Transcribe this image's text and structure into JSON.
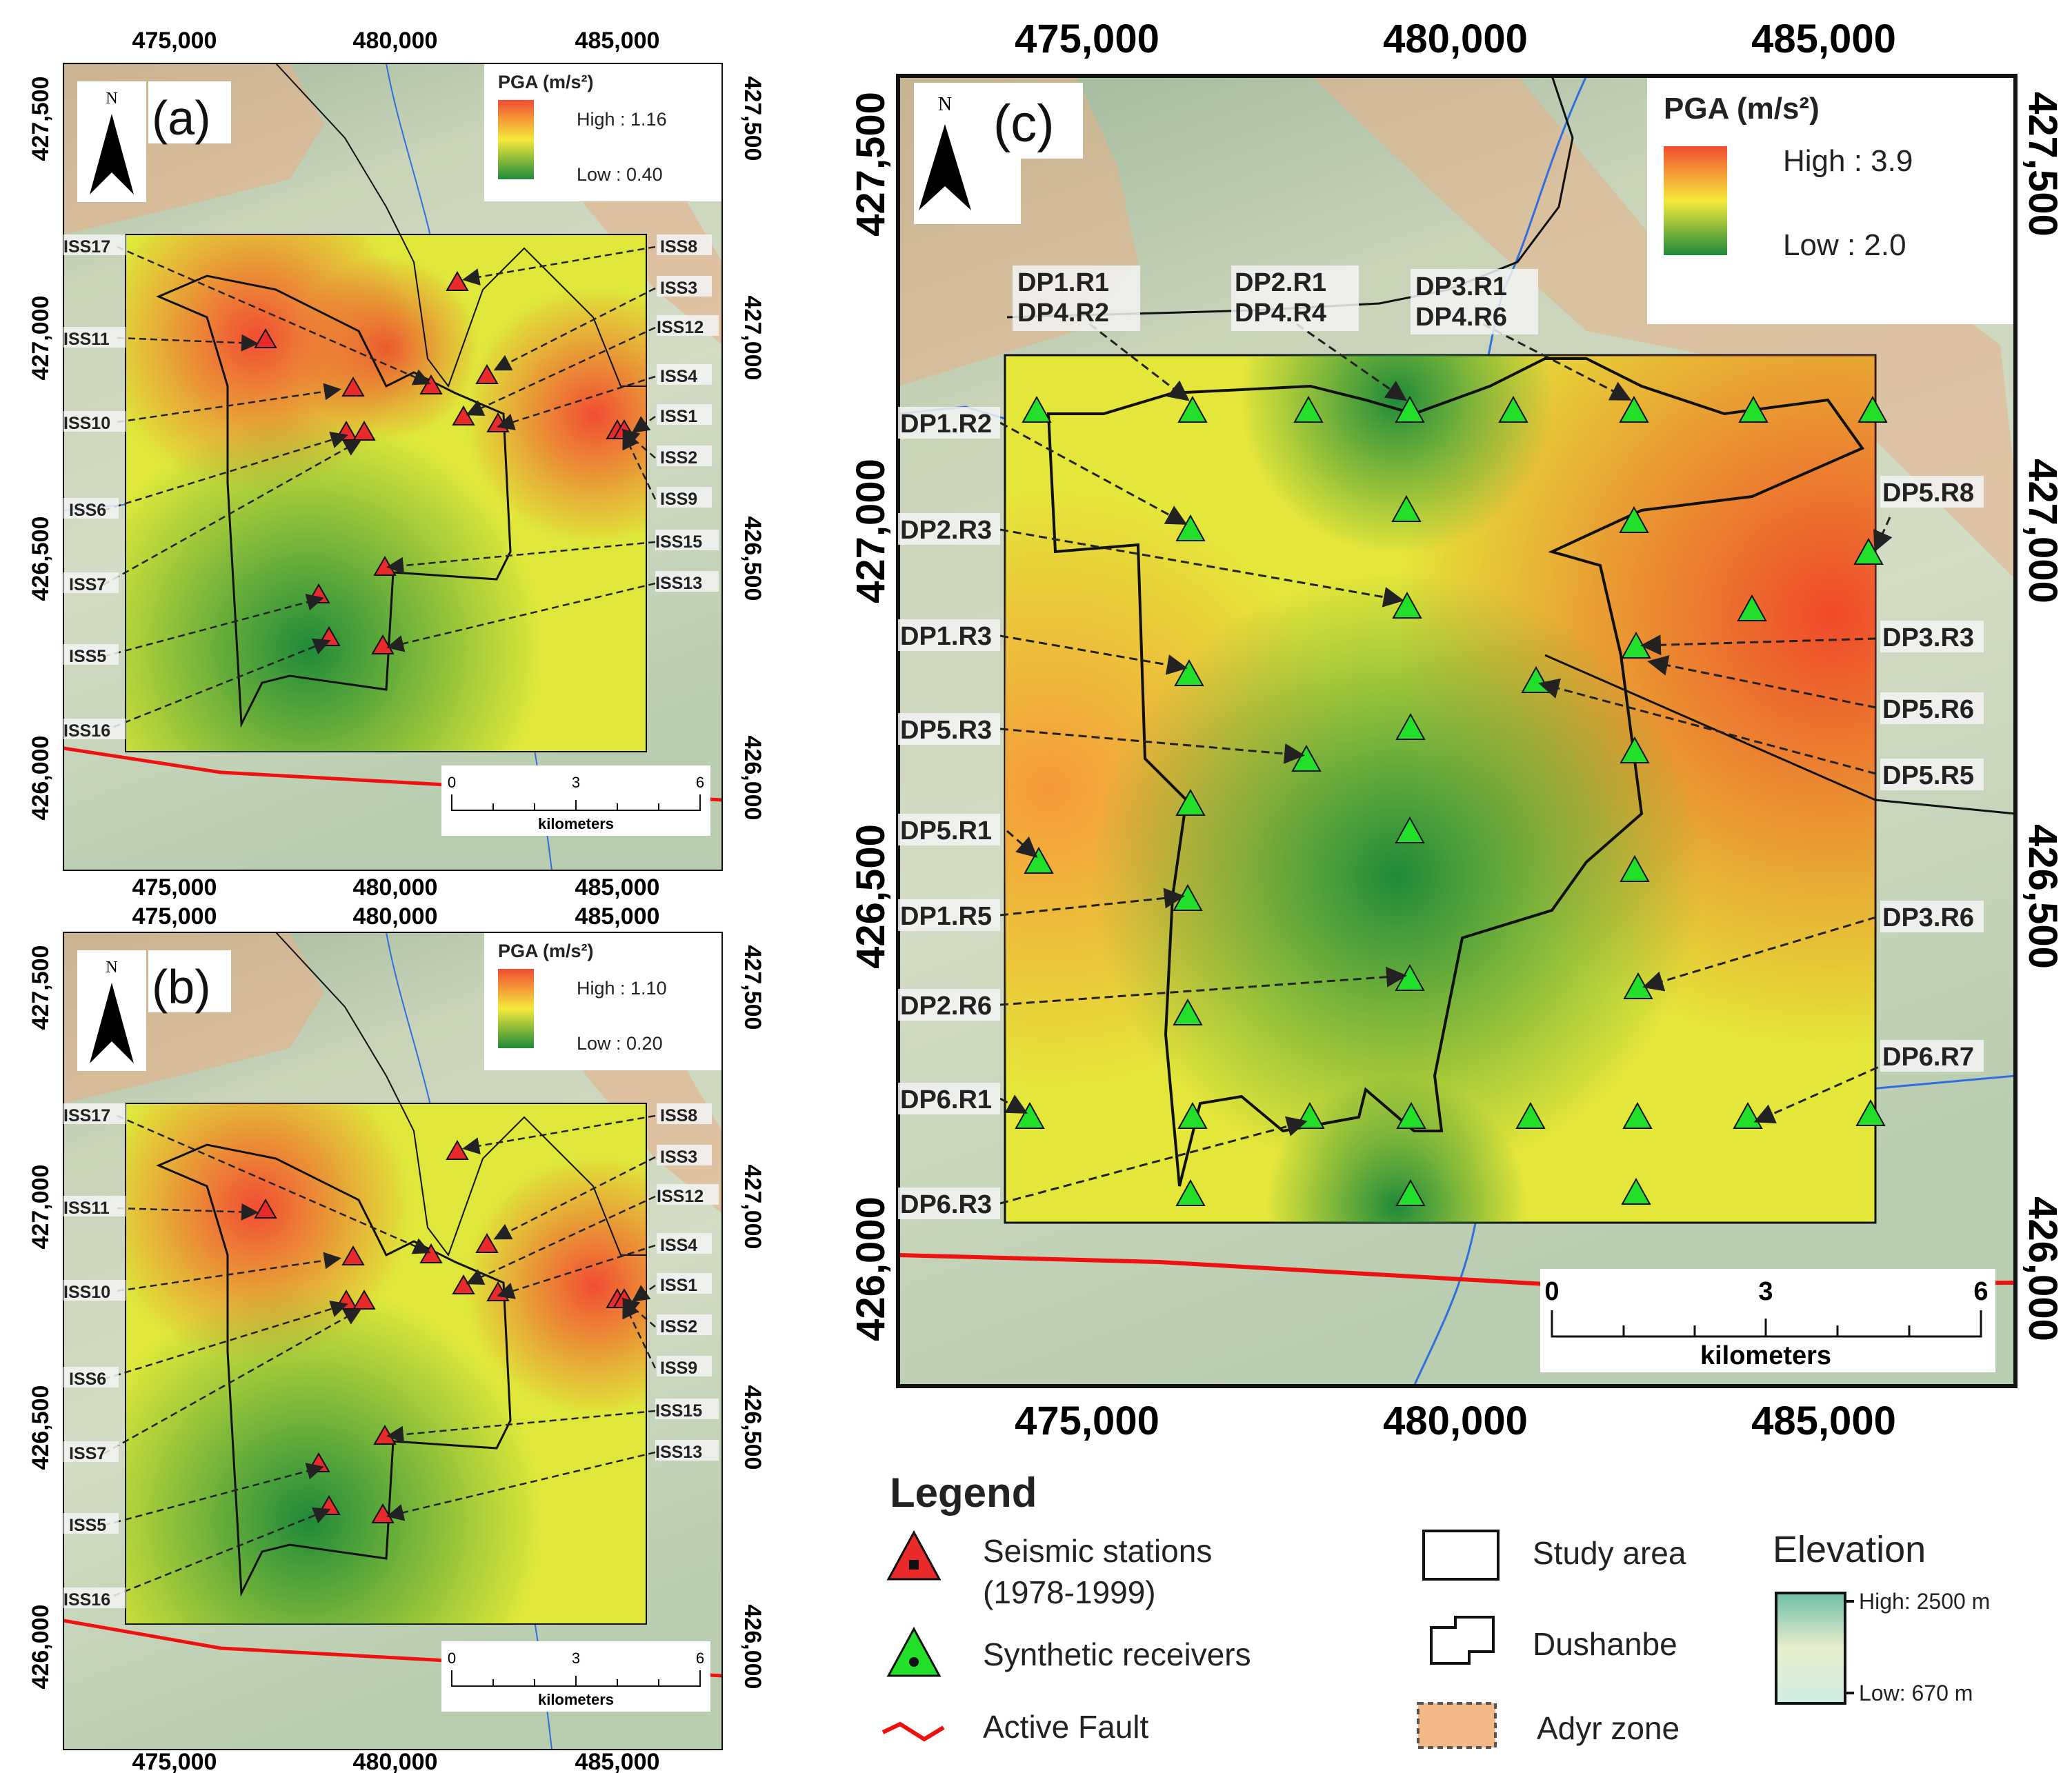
{
  "colors": {
    "pga_high": "#f24d33",
    "pga_mid": "#f5ea3a",
    "pga_low": "#1f8a3a",
    "station_fill": "#e82a2a",
    "receiver_fill": "#22e02a",
    "fault": "#ee1111",
    "river": "#2f6fe0",
    "adyr": "#e8b08a",
    "terrain": "#c9d6bd"
  },
  "icons": {
    "north_arrow": "north-arrow-icon",
    "station": "red-triangle-icon",
    "receiver": "green-triangle-icon",
    "fault": "red-line-icon"
  },
  "panels": [
    {
      "id": "a",
      "panel_label": "(a)",
      "north_label": "N",
      "x_ticks": [
        "475,000",
        "480,000",
        "485,000"
      ],
      "y_ticks": [
        "427,500",
        "427,000",
        "426,500",
        "426,000"
      ],
      "pga_legend": {
        "title": "PGA (m/s²)",
        "high": "High : 1.16",
        "low": "Low : 0.40"
      },
      "scale_bar": {
        "ticks": [
          "0",
          "3",
          "6"
        ],
        "unit": "kilometers"
      },
      "left_labels": [
        "ISS17",
        "ISS11",
        "ISS10",
        "ISS6",
        "ISS7",
        "ISS5",
        "ISS16"
      ],
      "right_labels": [
        "ISS8",
        "ISS3",
        "ISS12",
        "ISS4",
        "ISS1",
        "ISS2",
        "ISS9",
        "ISS15",
        "ISS13"
      ]
    },
    {
      "id": "b",
      "panel_label": "(b)",
      "north_label": "N",
      "x_ticks": [
        "475,000",
        "480,000",
        "485,000"
      ],
      "y_ticks": [
        "427,500",
        "427,000",
        "426,500",
        "426,000"
      ],
      "pga_legend": {
        "title": "PGA (m/s²)",
        "high": "High : 1.10",
        "low": "Low : 0.20"
      },
      "scale_bar": {
        "ticks": [
          "0",
          "3",
          "6"
        ],
        "unit": "kilometers"
      },
      "left_labels": [
        "ISS17",
        "ISS11",
        "ISS10",
        "ISS6",
        "ISS7",
        "ISS5",
        "ISS16"
      ],
      "right_labels": [
        "ISS8",
        "ISS3",
        "ISS12",
        "ISS4",
        "ISS1",
        "ISS2",
        "ISS9",
        "ISS15",
        "ISS13"
      ]
    }
  ],
  "panel_c": {
    "panel_label": "(c)",
    "north_label": "N",
    "x_ticks": [
      "475,000",
      "480,000",
      "485,000"
    ],
    "y_ticks": [
      "427,500",
      "427,000",
      "426,500",
      "426,000"
    ],
    "pga_legend": {
      "title": "PGA (m/s²)",
      "high": "High : 3.9",
      "low": "Low : 2.0"
    },
    "scale_bar": {
      "ticks": [
        "0",
        "3",
        "6"
      ],
      "unit": "kilometers"
    },
    "top_labels": [
      {
        "l1": "DP1.R1",
        "l2": "DP4.R2"
      },
      {
        "l1": "DP2.R1",
        "l2": "DP4.R4"
      },
      {
        "l1": "DP3.R1",
        "l2": "DP4.R6"
      }
    ],
    "left_labels": [
      "DP1.R2",
      "DP2.R3",
      "DP1.R3",
      "DP5.R3",
      "DP5.R1",
      "DP1.R5",
      "DP2.R6",
      "DP6.R1",
      "DP6.R3"
    ],
    "right_labels": [
      "DP5.R8",
      "DP3.R3",
      "DP5.R6",
      "DP5.R5",
      "DP3.R6",
      "DP6.R7"
    ]
  },
  "legend": {
    "title": "Legend",
    "stations_l1": "Seismic stations",
    "stations_l2": "(1978-1999)",
    "receivers": "Synthetic receivers",
    "fault": "Active Fault",
    "study_area": "Study area",
    "dushanbe": "Dushanbe",
    "adyr": "Adyr zone",
    "elevation_title": "Elevation",
    "elev_high": "High: 2500 m",
    "elev_low": "Low: 670 m"
  }
}
